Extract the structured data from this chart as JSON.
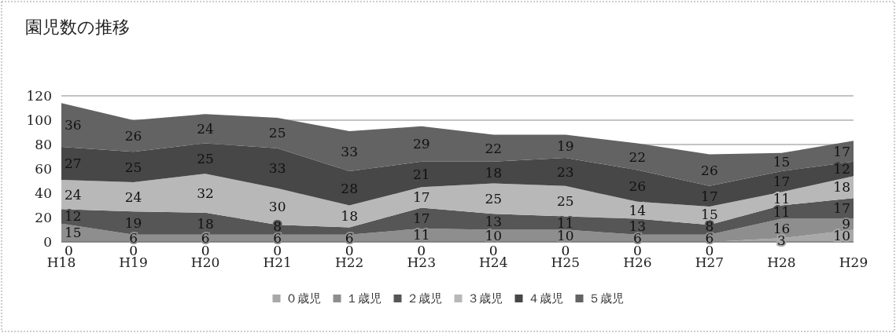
{
  "chart_data": {
    "type": "area",
    "title": "園児数の推移",
    "stacked": true,
    "ylim": [
      0,
      120
    ],
    "yticks": [
      0,
      20,
      40,
      60,
      80,
      100,
      120
    ],
    "grid": "y",
    "legend": "bottom",
    "categories": [
      "H18",
      "H19",
      "H20",
      "H21",
      "H22",
      "H23",
      "H24",
      "H25",
      "H26",
      "H27",
      "H28",
      "H29"
    ],
    "series": [
      {
        "name": "０歳児",
        "color": "#a8a8a8",
        "values": [
          0,
          0,
          0,
          0,
          0,
          0,
          0,
          0,
          0,
          0,
          3,
          10
        ],
        "value_labels": [
          "0",
          "0",
          "0",
          "0",
          "0",
          "0",
          "0",
          "0",
          "0",
          "0",
          "3",
          "10"
        ]
      },
      {
        "name": "１歳児",
        "color": "#8e8e8e",
        "values": [
          15,
          6,
          6,
          6,
          6,
          11,
          10,
          10,
          6,
          6,
          16,
          9
        ],
        "value_labels": [
          "15",
          "6",
          "6",
          "6",
          "6",
          "11",
          "10",
          "10",
          "6",
          "6",
          "16",
          "9"
        ]
      },
      {
        "name": "２歳児",
        "color": "#565656",
        "values": [
          12,
          19,
          18,
          8,
          6,
          17,
          13,
          11,
          13,
          8,
          11,
          17
        ],
        "value_labels": [
          "12",
          "19",
          "18",
          "8",
          null,
          "17",
          "13",
          "11",
          "13",
          "8",
          "11",
          "17"
        ]
      },
      {
        "name": "３歳児",
        "color": "#b8b8b8",
        "values": [
          24,
          24,
          32,
          30,
          18,
          17,
          25,
          25,
          14,
          15,
          11,
          18
        ],
        "value_labels": [
          "24",
          "24",
          "32",
          "30",
          "18",
          "17",
          "25",
          "25",
          "14",
          "15",
          "11",
          "18"
        ]
      },
      {
        "name": "４歳児",
        "color": "#474747",
        "values": [
          27,
          25,
          25,
          33,
          28,
          21,
          18,
          23,
          26,
          17,
          17,
          12
        ],
        "value_labels": [
          "27",
          "25",
          "25",
          "33",
          "28",
          "21",
          "18",
          "23",
          "26",
          "17",
          "17",
          "12"
        ]
      },
      {
        "name": "５歳児",
        "color": "#636363",
        "values": [
          36,
          26,
          24,
          25,
          33,
          29,
          22,
          19,
          22,
          26,
          15,
          17
        ],
        "value_labels": [
          "36",
          "26",
          "24",
          "25",
          "33",
          "29",
          "22",
          "19",
          "22",
          "26",
          "15",
          "17"
        ]
      }
    ]
  }
}
